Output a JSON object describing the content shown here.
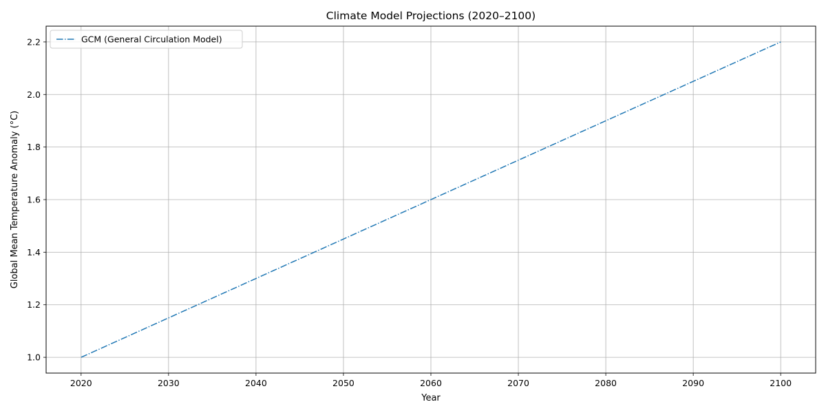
{
  "chart_data": {
    "type": "line",
    "title": "Climate Model Projections (2020–2100)",
    "xlabel": "Year",
    "ylabel": "Global Mean Temperature Anomaly (°C)",
    "xlim": [
      2016,
      2104
    ],
    "ylim": [
      0.94,
      2.26
    ],
    "xticks": [
      2020,
      2030,
      2040,
      2050,
      2060,
      2070,
      2080,
      2090,
      2100
    ],
    "yticks": [
      1.0,
      1.2,
      1.4,
      1.6,
      1.8,
      2.0,
      2.2
    ],
    "grid": true,
    "legend_position": "upper-left",
    "series": [
      {
        "name": "GCM (General Circulation Model)",
        "color": "#1f77b4",
        "linestyle": "dash-dot",
        "x": [
          2020,
          2030,
          2040,
          2050,
          2060,
          2070,
          2080,
          2090,
          2100
        ],
        "y": [
          1.0,
          1.15,
          1.3,
          1.45,
          1.6,
          1.75,
          1.9,
          2.05,
          2.2
        ]
      }
    ]
  }
}
